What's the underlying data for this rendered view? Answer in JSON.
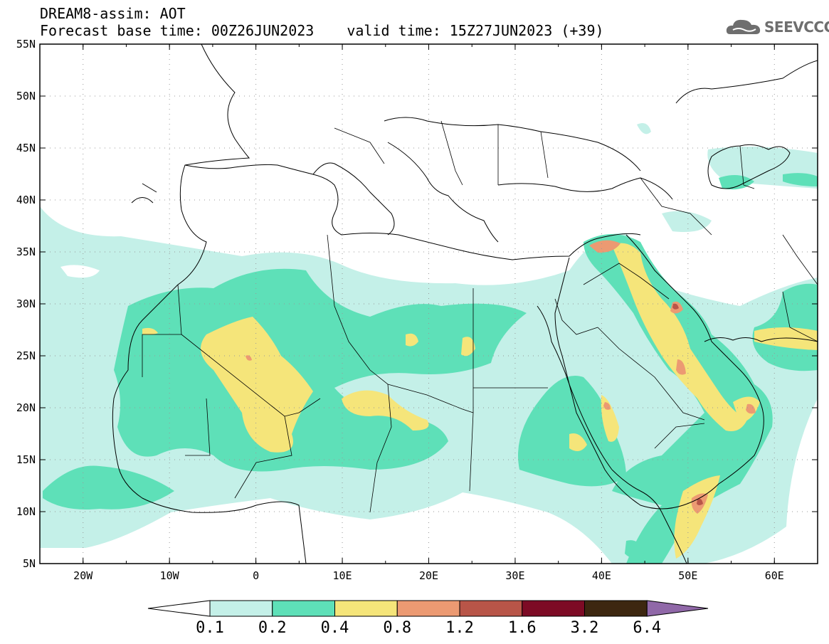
{
  "title": {
    "line1": "DREAM8-assim: AOT",
    "base_time": "Forecast base time: 00Z26JUN2023",
    "valid_time": "valid time: 15Z27JUN2023 (+39)"
  },
  "logo": {
    "text": "SEEVCCC",
    "icon": "cloud-icon"
  },
  "map": {
    "lat_labels": [
      "55N",
      "50N",
      "45N",
      "40N",
      "35N",
      "30N",
      "25N",
      "20N",
      "15N",
      "10N",
      "5N"
    ],
    "lon_labels": [
      "20W",
      "10W",
      "0",
      "10E",
      "20E",
      "30E",
      "40E",
      "50E",
      "60E"
    ],
    "lon_range": [
      -25,
      65
    ],
    "lat_range": [
      5,
      55
    ]
  },
  "colorbar": {
    "labels": [
      "0.1",
      "0.2",
      "0.4",
      "0.8",
      "1.2",
      "1.6",
      "3.2",
      "6.4"
    ],
    "colors": [
      "#c4f0e8",
      "#5ee0b8",
      "#f5e57a",
      "#ec9a72",
      "#b85548",
      "#7d0b25",
      "#3d2710",
      "#9068a8"
    ]
  }
}
